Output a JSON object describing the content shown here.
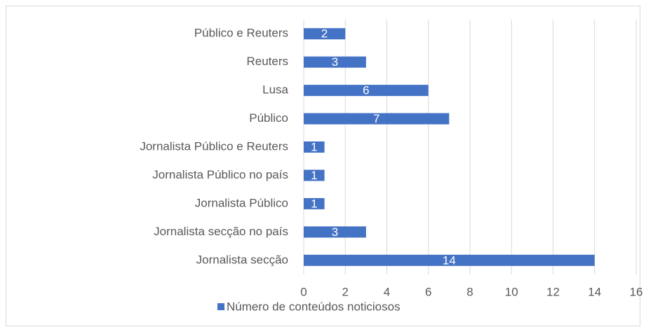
{
  "chart_data": {
    "type": "barh",
    "categories": [
      "Público e Reuters",
      "Reuters",
      "Lusa",
      "Público",
      "Jornalista Público e Reuters",
      "Jornalista Público no país",
      "Jornalista Público",
      "Jornalista secção no país",
      "Jornalista secção"
    ],
    "series": [
      {
        "name": "Número de conteúdos noticiosos",
        "color": "#4472c4",
        "values": [
          2,
          3,
          6,
          7,
          1,
          1,
          1,
          3,
          14
        ]
      }
    ],
    "xlim": [
      0,
      16
    ],
    "xticks": [
      0,
      2,
      4,
      6,
      8,
      10,
      12,
      14,
      16
    ],
    "grid": true,
    "legend": "bottom"
  }
}
